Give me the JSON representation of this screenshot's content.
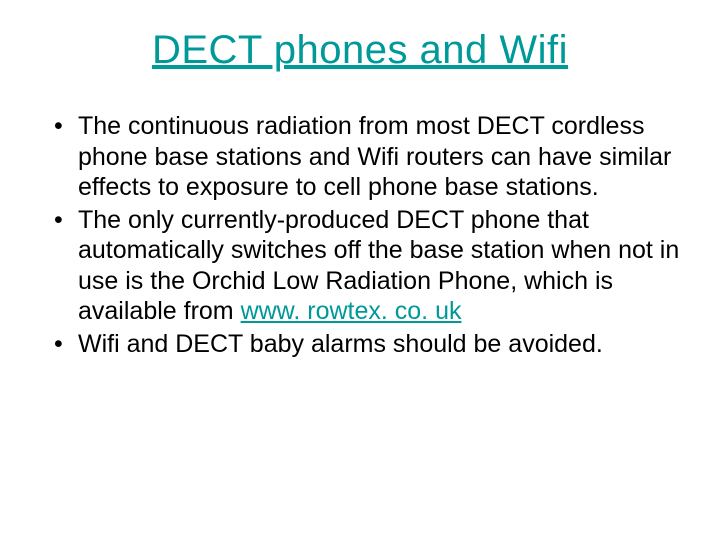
{
  "colors": {
    "title_color": "#009999",
    "body_color": "#000000",
    "link_color": "#009999",
    "background": "#ffffff"
  },
  "title": "DECT phones and Wifi",
  "bullets": [
    {
      "prefix": "The continuous radiation from most DECT cordless phone base stations and Wifi routers can have similar effects to exposure to cell phone base stations.",
      "link": "",
      "suffix": ""
    },
    {
      "prefix": "The only currently-produced DECT phone that automatically switches off the base station when not in use is the Orchid Low Radiation Phone, which is available from ",
      "link": "www. rowtex. co. uk",
      "suffix": ""
    },
    {
      "prefix": "Wifi and DECT baby alarms should be avoided.",
      "link": "",
      "suffix": ""
    }
  ]
}
